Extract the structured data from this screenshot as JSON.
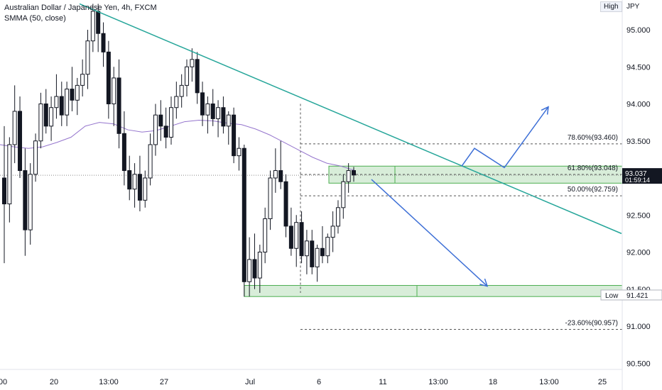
{
  "header": {
    "symbol_title": "Australian Dollar / Japanese Yen, 4h, FXCM",
    "indicator": "SMMA (50, close)",
    "high_tag": "High",
    "currency": "JPY"
  },
  "chart_data": {
    "type": "candlestick",
    "title": "Australian Dollar / Japanese Yen, 4h, FXCM",
    "y_ticks": [
      "95.000",
      "94.500",
      "94.000",
      "93.500",
      "93.000",
      "92.500",
      "92.000",
      "91.500",
      "91.000",
      "90.500"
    ],
    "ylim": [
      90.3,
      95.3
    ],
    "x_ticks": [
      "00",
      "20",
      "13:00",
      "27",
      "Jul",
      "6",
      "11",
      "13:00",
      "18",
      "13:00",
      "25"
    ],
    "current_price": "93.037",
    "countdown": "01:59:14",
    "low_label": "Low",
    "low_price": "91.421",
    "fib_levels": [
      {
        "label": "78.60%(93.460)",
        "price": 93.46
      },
      {
        "label": "61.80%(93.048)",
        "price": 93.048
      },
      {
        "label": "50.00%(92.759)",
        "price": 92.759
      },
      {
        "label": "-23.60%(90.957)",
        "price": 90.957
      }
    ],
    "zones": [
      {
        "name": "resistance-zone",
        "from": 92.93,
        "to": 93.16
      },
      {
        "name": "support-zone",
        "from": 91.4,
        "to": 91.55
      }
    ],
    "candles": [
      [
        93.0,
        93.7,
        91.85,
        92.65
      ],
      [
        92.65,
        93.55,
        92.4,
        93.45
      ],
      [
        93.45,
        94.25,
        93.2,
        93.9
      ],
      [
        93.9,
        94.1,
        93.0,
        93.1
      ],
      [
        93.1,
        93.4,
        91.95,
        92.3
      ],
      [
        92.3,
        93.2,
        92.1,
        93.05
      ],
      [
        93.05,
        93.6,
        92.95,
        93.5
      ],
      [
        93.5,
        94.15,
        93.4,
        94.0
      ],
      [
        94.0,
        94.2,
        93.6,
        93.7
      ],
      [
        93.7,
        94.1,
        93.5,
        93.95
      ],
      [
        93.95,
        94.4,
        93.8,
        94.1
      ],
      [
        94.1,
        94.3,
        93.7,
        93.85
      ],
      [
        93.85,
        94.3,
        93.7,
        94.2
      ],
      [
        94.2,
        94.5,
        93.9,
        94.05
      ],
      [
        94.05,
        94.35,
        93.85,
        94.25
      ],
      [
        94.25,
        94.6,
        94.1,
        94.4
      ],
      [
        94.4,
        95.0,
        94.2,
        94.85
      ],
      [
        94.85,
        95.35,
        94.7,
        95.25
      ],
      [
        95.25,
        95.35,
        94.7,
        94.95
      ],
      [
        94.95,
        95.1,
        94.5,
        94.7
      ],
      [
        94.7,
        94.85,
        93.8,
        94.0
      ],
      [
        94.0,
        94.5,
        93.7,
        94.35
      ],
      [
        94.35,
        94.6,
        93.4,
        93.6
      ],
      [
        93.6,
        93.9,
        92.9,
        93.1
      ],
      [
        93.1,
        93.3,
        92.7,
        92.85
      ],
      [
        92.85,
        93.2,
        92.6,
        93.05
      ],
      [
        93.05,
        93.3,
        92.55,
        92.7
      ],
      [
        92.7,
        93.1,
        92.6,
        93.0
      ],
      [
        93.0,
        93.6,
        92.9,
        93.45
      ],
      [
        93.45,
        94.0,
        93.3,
        93.85
      ],
      [
        93.85,
        94.05,
        93.5,
        93.7
      ],
      [
        93.7,
        93.95,
        93.4,
        93.55
      ],
      [
        93.55,
        94.1,
        93.45,
        93.95
      ],
      [
        93.95,
        94.3,
        93.8,
        94.1
      ],
      [
        94.1,
        94.4,
        93.95,
        94.25
      ],
      [
        94.25,
        94.6,
        94.1,
        94.5
      ],
      [
        94.5,
        94.75,
        94.3,
        94.6
      ],
      [
        94.6,
        94.7,
        94.0,
        94.15
      ],
      [
        94.15,
        94.3,
        93.7,
        93.85
      ],
      [
        93.85,
        94.1,
        93.6,
        94.0
      ],
      [
        94.0,
        94.2,
        93.7,
        93.8
      ],
      [
        93.8,
        94.05,
        93.55,
        93.95
      ],
      [
        93.95,
        94.1,
        93.6,
        93.7
      ],
      [
        93.7,
        93.9,
        93.45,
        93.85
      ],
      [
        93.85,
        93.95,
        93.2,
        93.3
      ],
      [
        93.3,
        93.55,
        93.1,
        93.4
      ],
      [
        93.4,
        93.45,
        91.4,
        91.6
      ],
      [
        91.6,
        92.2,
        91.4,
        91.9
      ],
      [
        91.9,
        92.25,
        91.5,
        91.65
      ],
      [
        91.65,
        92.1,
        91.45,
        92.0
      ],
      [
        92.0,
        92.6,
        91.85,
        92.45
      ],
      [
        92.45,
        93.1,
        92.3,
        93.0
      ],
      [
        93.0,
        93.4,
        92.8,
        93.1
      ],
      [
        93.1,
        93.5,
        92.85,
        92.95
      ],
      [
        92.95,
        93.05,
        92.2,
        92.35
      ],
      [
        92.35,
        92.6,
        91.95,
        92.05
      ],
      [
        92.05,
        92.5,
        91.8,
        92.4
      ],
      [
        92.4,
        92.55,
        91.85,
        91.95
      ],
      [
        91.95,
        92.3,
        91.7,
        92.15
      ],
      [
        92.15,
        92.3,
        91.7,
        91.8
      ],
      [
        91.8,
        92.1,
        91.6,
        92.05
      ],
      [
        92.05,
        92.35,
        91.85,
        91.95
      ],
      [
        91.95,
        92.25,
        91.85,
        92.2
      ],
      [
        92.2,
        92.55,
        92.0,
        92.35
      ],
      [
        92.35,
        92.7,
        92.25,
        92.6
      ],
      [
        92.6,
        93.05,
        92.45,
        92.95
      ],
      [
        92.95,
        93.2,
        92.8,
        93.1
      ],
      [
        93.1,
        93.15,
        92.95,
        93.04
      ]
    ],
    "smma": [
      [
        0,
        93.45
      ],
      [
        20,
        93.42
      ],
      [
        40,
        93.4
      ],
      [
        60,
        93.42
      ],
      [
        80,
        93.48
      ],
      [
        100,
        93.55
      ],
      [
        120,
        93.7
      ],
      [
        140,
        93.75
      ],
      [
        160,
        93.73
      ],
      [
        180,
        93.65
      ],
      [
        200,
        93.62
      ],
      [
        220,
        93.64
      ],
      [
        240,
        93.7
      ],
      [
        260,
        93.76
      ],
      [
        280,
        93.78
      ],
      [
        300,
        93.77
      ],
      [
        320,
        93.74
      ],
      [
        340,
        93.72
      ],
      [
        360,
        93.66
      ],
      [
        380,
        93.58
      ],
      [
        400,
        93.48
      ],
      [
        420,
        93.38
      ],
      [
        440,
        93.28
      ],
      [
        460,
        93.2
      ],
      [
        480,
        93.16
      ],
      [
        500,
        93.1
      ]
    ],
    "trendline": {
      "from": [
        112,
        95.35
      ],
      "to": [
        875,
        92.25
      ]
    },
    "arrows": {
      "up_path": [
        [
          650,
          93.16
        ],
        [
          668,
          93.4
        ],
        [
          710,
          93.14
        ],
        [
          772,
          93.96
        ]
      ],
      "down_path": [
        [
          523,
          92.98
        ],
        [
          686,
          91.54
        ]
      ]
    }
  }
}
